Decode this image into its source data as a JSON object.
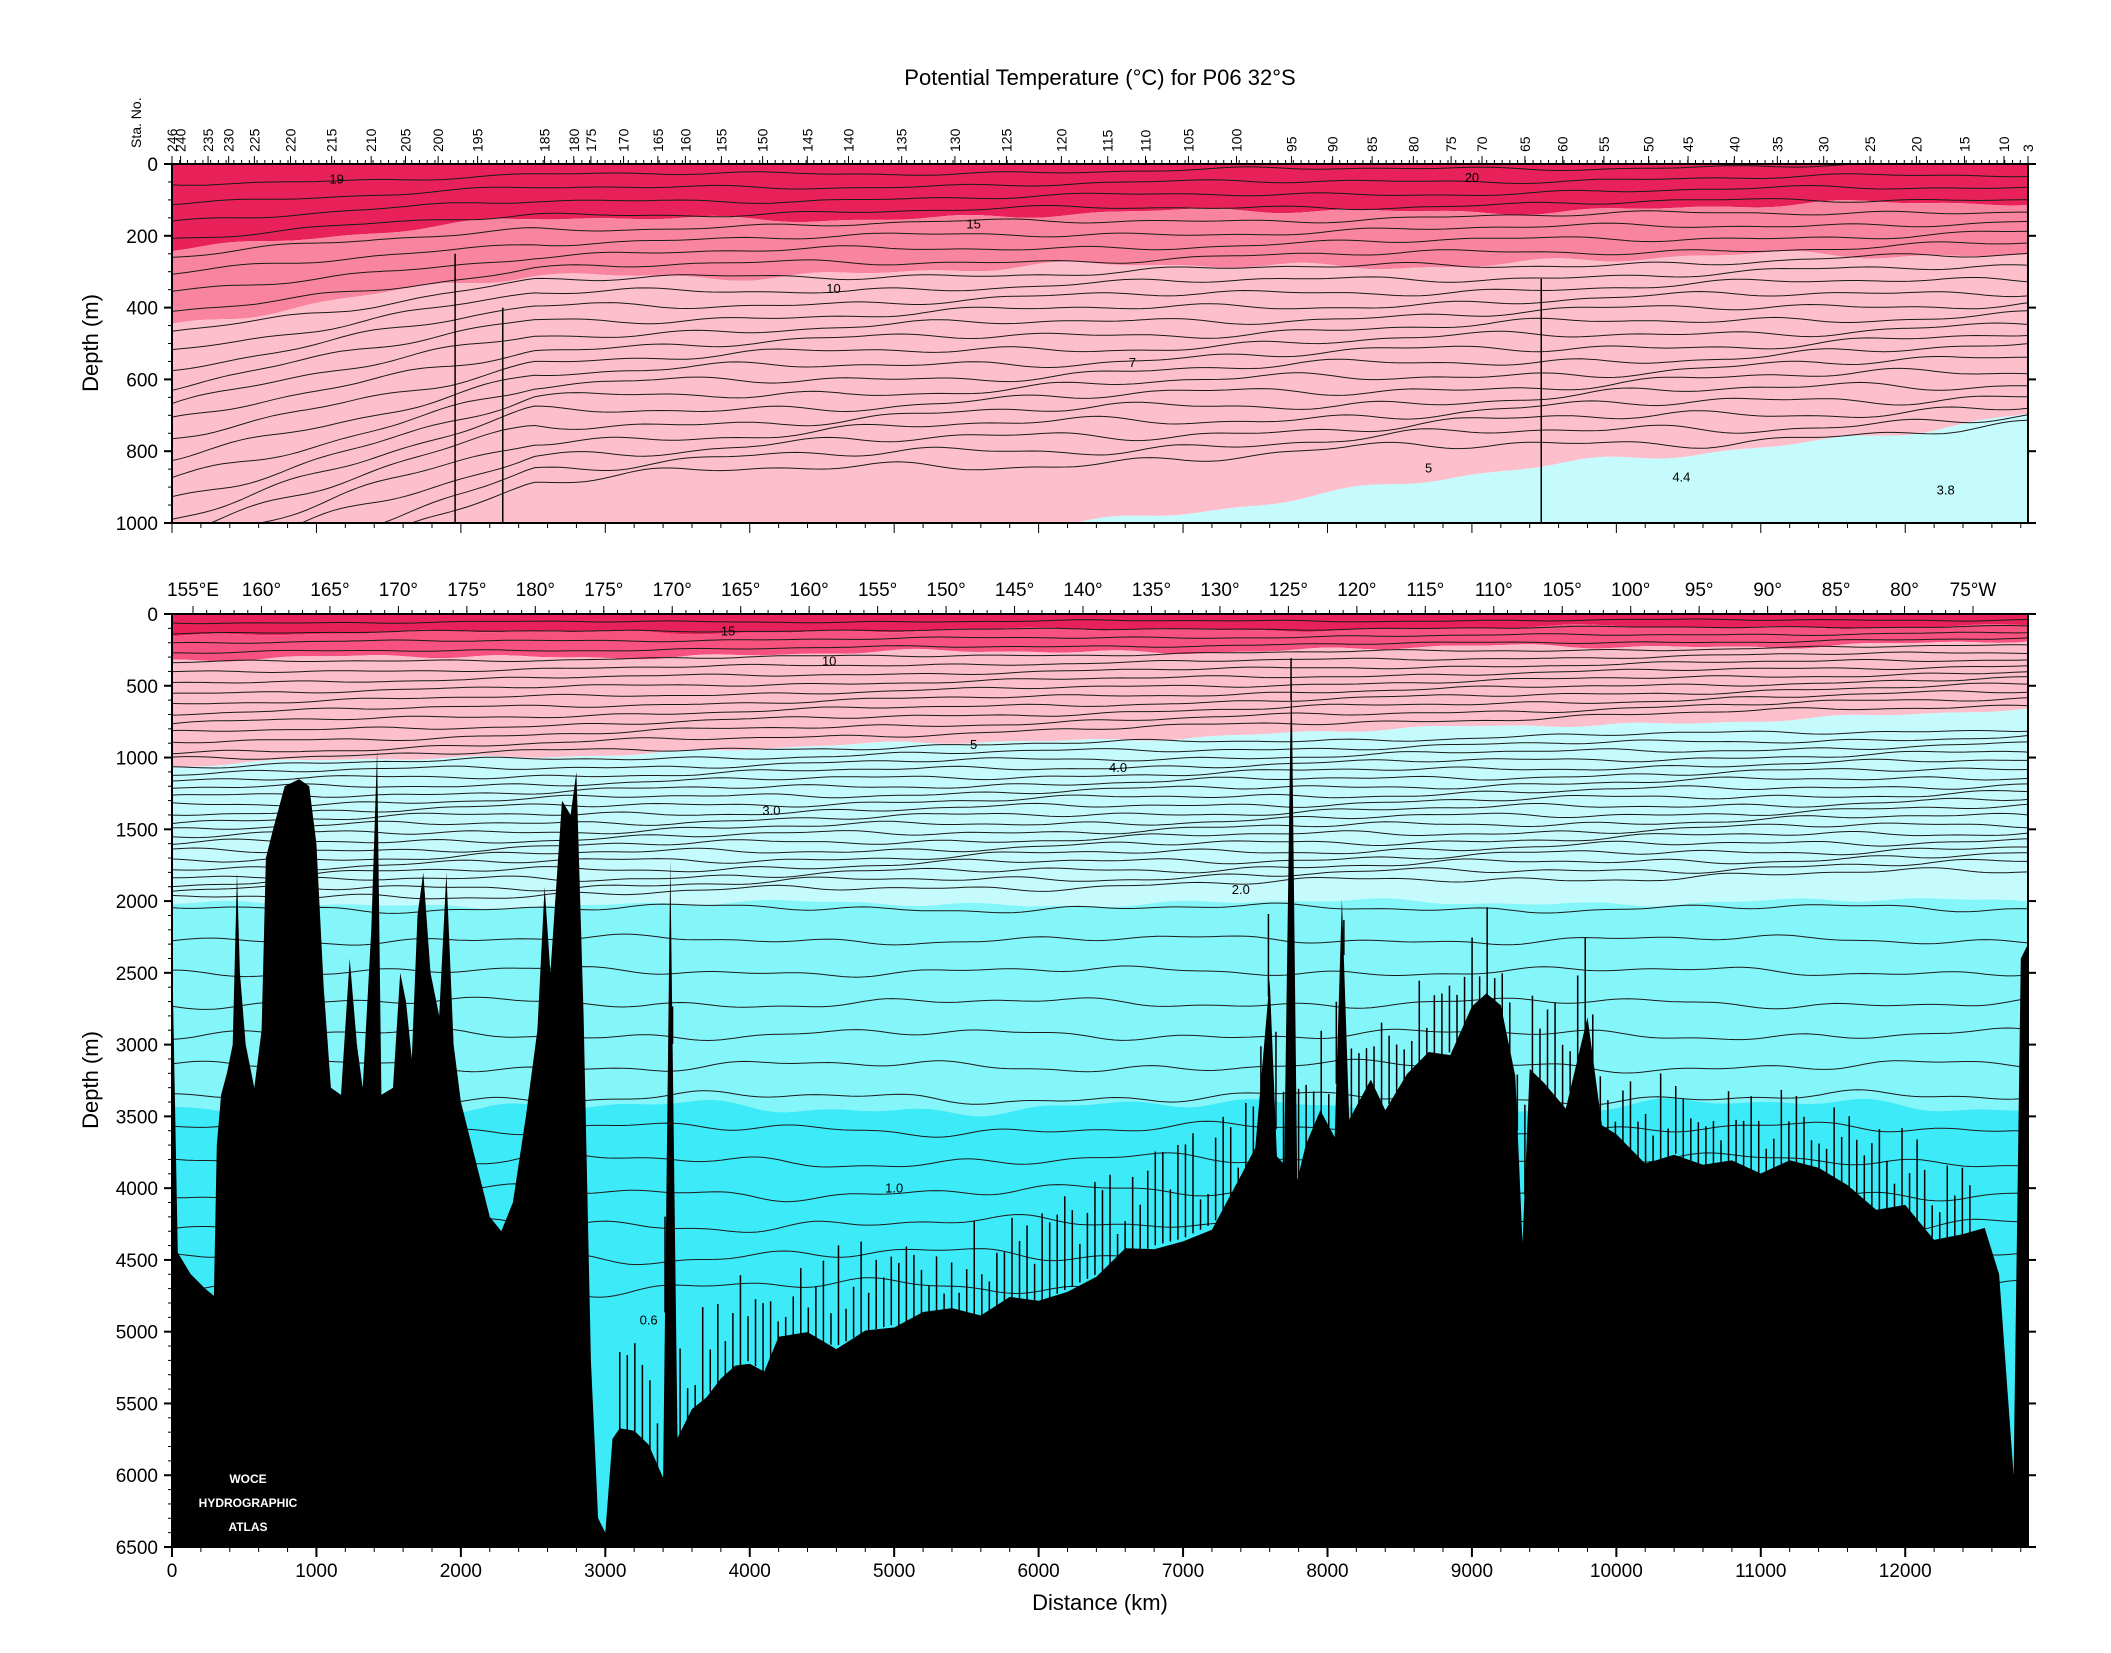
{
  "title": "Potential Temperature (°C) for P06 32°S",
  "chart_data": [
    {
      "type": "heatmap",
      "name": "upper-section",
      "title": "Potential Temperature (°C) for P06 32°S",
      "ylabel": "Depth (m)",
      "ylim": [
        0,
        1000
      ],
      "y_ticks": [
        0,
        200,
        400,
        600,
        800,
        1000
      ],
      "xlim": [
        0,
        12850
      ],
      "station_axis_label": "Sta. No.",
      "stations": [
        {
          "label": "246",
          "km": 0
        },
        {
          "label": "240",
          "km": 50
        },
        {
          "label": "235",
          "km": 210
        },
        {
          "label": "230",
          "km": 330
        },
        {
          "label": "225",
          "km": 480
        },
        {
          "label": "220",
          "km": 690
        },
        {
          "label": "215",
          "km": 930
        },
        {
          "label": "210",
          "km": 1160
        },
        {
          "label": "205",
          "km": 1360
        },
        {
          "label": "200",
          "km": 1550
        },
        {
          "label": "195",
          "km": 1780
        },
        {
          "label": "185",
          "km": 2170
        },
        {
          "label": "180",
          "km": 2340
        },
        {
          "label": "175",
          "km": 2440
        },
        {
          "label": "170",
          "km": 2630
        },
        {
          "label": "165",
          "km": 2830
        },
        {
          "label": "160",
          "km": 2990
        },
        {
          "label": "155",
          "km": 3200
        },
        {
          "label": "150",
          "km": 3440
        },
        {
          "label": "145",
          "km": 3700
        },
        {
          "label": "140",
          "km": 3940
        },
        {
          "label": "135",
          "km": 4250
        },
        {
          "label": "130",
          "km": 4560
        },
        {
          "label": "125",
          "km": 4860
        },
        {
          "label": "120",
          "km": 5180
        },
        {
          "label": "115",
          "km": 5450
        },
        {
          "label": "110",
          "km": 5670
        },
        {
          "label": "105",
          "km": 5920
        },
        {
          "label": "100",
          "km": 6200
        },
        {
          "label": "95",
          "km": 6520
        },
        {
          "label": "90",
          "km": 6760
        },
        {
          "label": "85",
          "km": 6990
        },
        {
          "label": "80",
          "km": 7230
        },
        {
          "label": "75",
          "km": 7450
        },
        {
          "label": "70",
          "km": 7630
        },
        {
          "label": "65",
          "km": 7880
        },
        {
          "label": "60",
          "km": 8100
        },
        {
          "label": "55",
          "km": 8340
        },
        {
          "label": "50",
          "km": 8600
        },
        {
          "label": "45",
          "km": 8830
        },
        {
          "label": "40",
          "km": 9100
        },
        {
          "label": "35",
          "km": 9350
        },
        {
          "label": "30",
          "km": 9620
        },
        {
          "label": "25",
          "km": 9890
        },
        {
          "label": "20",
          "km": 10160
        },
        {
          "label": "15",
          "km": 10440
        },
        {
          "label": "10",
          "km": 10670
        },
        {
          "label": "3",
          "km": 10810
        }
      ],
      "contour_labels": [
        {
          "text": "19",
          "km": 1140,
          "depth": 55
        },
        {
          "text": "20",
          "km": 9000,
          "depth": 50
        },
        {
          "text": "15",
          "km": 5550,
          "depth": 180
        },
        {
          "text": "10",
          "km": 4580,
          "depth": 360
        },
        {
          "text": "7",
          "km": 6650,
          "depth": 565
        },
        {
          "text": "5",
          "km": 8700,
          "depth": 860
        },
        {
          "text": "4.4",
          "km": 10450,
          "depth": 885
        },
        {
          "text": "3.8",
          "km": 12280,
          "depth": 920
        }
      ]
    },
    {
      "type": "heatmap",
      "name": "full-depth-section",
      "xlabel": "Distance (km)",
      "ylabel": "Depth (m)",
      "xlim": [
        0,
        12850
      ],
      "ylim": [
        0,
        6500
      ],
      "x_ticks": [
        0,
        1000,
        2000,
        3000,
        4000,
        5000,
        6000,
        7000,
        8000,
        9000,
        10000,
        11000,
        12000
      ],
      "y_ticks": [
        0,
        500,
        1000,
        1500,
        2000,
        2500,
        3000,
        3500,
        4000,
        4500,
        5000,
        5500,
        6000,
        6500
      ],
      "longitudes": [
        "155°E",
        "160°",
        "165°",
        "170°",
        "175°",
        "180°",
        "175°",
        "170°",
        "165°",
        "160°",
        "155°",
        "150°",
        "145°",
        "140°",
        "135°",
        "130°",
        "125°",
        "120°",
        "115°",
        "110°",
        "105°",
        "100°",
        "95°",
        "90°",
        "85°",
        "80°",
        "75°W"
      ],
      "contour_labels": [
        {
          "text": "15",
          "km": 3850,
          "depth": 150
        },
        {
          "text": "10",
          "km": 4550,
          "depth": 360
        },
        {
          "text": "5",
          "km": 5550,
          "depth": 940
        },
        {
          "text": "4.0",
          "km": 6550,
          "depth": 1100
        },
        {
          "text": "3.0",
          "km": 4150,
          "depth": 1400
        },
        {
          "text": "2.0",
          "km": 7400,
          "depth": 1950
        },
        {
          "text": "1.0",
          "km": 5000,
          "depth": 4030
        },
        {
          "text": "0.6",
          "km": 3300,
          "depth": 4950
        }
      ],
      "watermark": [
        "WOCE",
        "HYDROGRAPHIC",
        "ATLAS"
      ],
      "colors": {
        "warm_dark": "#e8215a",
        "warm_mid": "#f7527f",
        "warm_light": "#f9849f",
        "warm_pale": "#fdbfcc",
        "cool_pale": "#c6fbfd",
        "cool_mid": "#84f6fa",
        "cool_deep": "#3ceaf8",
        "bottom": "#000000"
      }
    }
  ]
}
